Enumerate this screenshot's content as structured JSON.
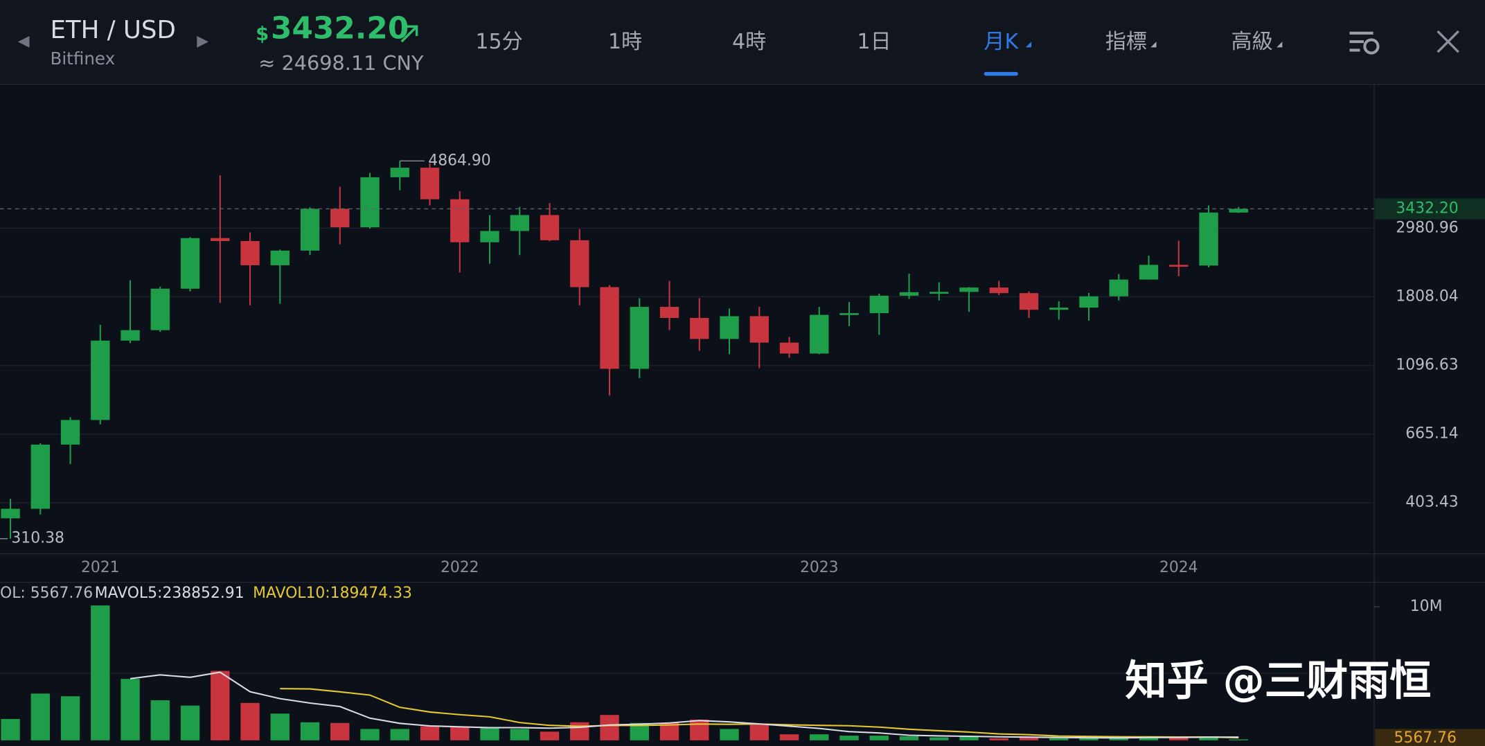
{
  "header": {
    "pair": "ETH / USD",
    "exchange": "Bitfinex",
    "price_symbol": "$",
    "price": "3432.20",
    "cny": "≈ 24698.11 CNY"
  },
  "tabs": [
    "15分",
    "1時",
    "4時",
    "1日",
    "月K",
    "指標",
    "高級"
  ],
  "active_tab": 4,
  "watermark": "知乎 @三财雨恒",
  "chart_data": {
    "type": "candlestick",
    "log_scale": true,
    "grid": true,
    "up_color": "#1f9e4a",
    "down_color": "#c9353e",
    "categories": [
      null,
      null,
      null,
      "2021",
      null,
      null,
      null,
      null,
      null,
      null,
      null,
      null,
      null,
      null,
      null,
      "2022",
      null,
      null,
      null,
      null,
      null,
      null,
      null,
      null,
      null,
      null,
      null,
      "2023",
      null,
      null,
      null,
      null,
      null,
      null,
      null,
      null,
      null,
      null,
      null,
      "2024",
      null,
      null
    ],
    "open": [
      360,
      386,
      616,
      737,
      1314,
      1418,
      1918,
      2773,
      2714,
      2275,
      2531,
      3433,
      3000,
      4320,
      4630,
      3680,
      2690,
      2920,
      3280,
      2730,
      1940,
      1070,
      1680,
      1550,
      1330,
      1570,
      1295,
      1196,
      1585,
      1605,
      1822,
      1870,
      1874,
      1934,
      1857,
      1645,
      1671,
      1815,
      2050,
      2282,
      2270,
      3340
    ],
    "high": [
      415,
      622,
      752,
      1475,
      2040,
      1947,
      2790,
      4380,
      2890,
      2550,
      3470,
      4030,
      4460,
      4864.9,
      4780,
      3900,
      3280,
      3480,
      3580,
      2960,
      1970,
      1790,
      2030,
      1790,
      1660,
      1680,
      1350,
      1680,
      1740,
      1850,
      2140,
      2010,
      1940,
      2030,
      1880,
      1750,
      1860,
      2135,
      2440,
      2720,
      3520,
      3480
    ],
    "low": [
      310.38,
      370,
      535,
      714,
      1290,
      1400,
      1880,
      1730,
      1700,
      1718,
      2450,
      2650,
      2970,
      3930,
      3520,
      2160,
      2300,
      2450,
      2710,
      1700,
      880,
      1000,
      1420,
      1220,
      1190,
      1075,
      1160,
      1190,
      1460,
      1370,
      1780,
      1760,
      1620,
      1830,
      1550,
      1530,
      1520,
      1760,
      2050,
      2100,
      2240,
      3330
    ],
    "close": [
      386,
      616,
      737,
      1314,
      1418,
      1918,
      2773,
      2714,
      2275,
      2531,
      3433,
      3000,
      4320,
      4630,
      3680,
      2690,
      2920,
      3280,
      2730,
      1940,
      1070,
      1680,
      1550,
      1330,
      1570,
      1295,
      1196,
      1585,
      1605,
      1822,
      1870,
      1874,
      1934,
      1857,
      1645,
      1671,
      1815,
      2050,
      2282,
      2270,
      3340,
      3432.2
    ],
    "max_label": "4864.90",
    "min_label": "310.38",
    "last_label": "3432.20",
    "ylim": [
      278,
      8446
    ],
    "yticks": [
      403.43,
      665.14,
      1096.63,
      1808.04,
      2980.96
    ],
    "volume": [
      1600000,
      3500000,
      3300000,
      10100000,
      4600000,
      3000000,
      2600000,
      5200000,
      2800000,
      2000000,
      1350000,
      1300000,
      850000,
      850000,
      1050000,
      1000000,
      1000000,
      850000,
      650000,
      1350000,
      1900000,
      1300000,
      1300000,
      1550000,
      850000,
      1150000,
      450000,
      450000,
      350000,
      350000,
      300000,
      220000,
      300000,
      150000,
      220000,
      150000,
      150000,
      220000,
      300000,
      220000,
      300000,
      5567.76
    ],
    "ma5": [
      null,
      null,
      null,
      null,
      4620000,
      4900000,
      4720000,
      5100000,
      3640000,
      3120000,
      2790000,
      2530000,
      1660000,
      1270000,
      1080000,
      1010000,
      950000,
      950000,
      910000,
      970000,
      1150000,
      1210000,
      1300000,
      1480000,
      1380000,
      1230000,
      1060000,
      890000,
      650000,
      550000,
      380000,
      330000,
      300000,
      260000,
      240000,
      210000,
      190000,
      180000,
      210000,
      210000,
      240000,
      238852.91
    ],
    "ma10": [
      null,
      null,
      null,
      null,
      null,
      null,
      null,
      null,
      null,
      3870000,
      3850000,
      3630000,
      3390000,
      2470000,
      2120000,
      1920000,
      1760000,
      1330000,
      1120000,
      1050000,
      1110000,
      1110000,
      1150000,
      1220000,
      1200000,
      1220000,
      1160000,
      1120000,
      1090000,
      990000,
      830000,
      720000,
      620000,
      480000,
      420000,
      320000,
      290000,
      270000,
      260000,
      250000,
      250000,
      189474.33
    ],
    "ma5_color": "#d9dce3",
    "ma10_color": "#e6c832",
    "vol_label": "OL: 5567.76",
    "ma5_label": "MAVOL5:238852.91",
    "ma10_label": "MAVOL10:189474.33",
    "y2lim": [
      0,
      11840000
    ],
    "y2ticks": [
      {
        "value": 10000000,
        "label": "10M"
      }
    ],
    "vol_last_label": "5567.76"
  }
}
